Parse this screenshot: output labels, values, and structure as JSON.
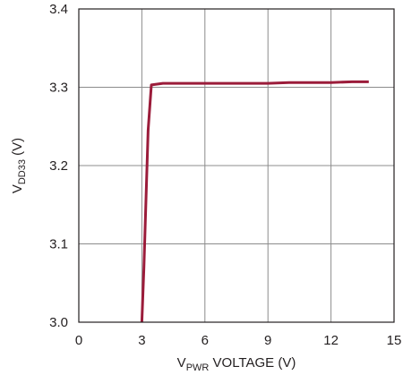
{
  "chart_data": {
    "type": "line",
    "title": "",
    "xlabel_main": "V",
    "xlabel_sub": "PWR",
    "xlabel_rest": " VOLTAGE (V)",
    "ylabel_main": "V",
    "ylabel_sub": "DD33",
    "ylabel_rest": " (V)",
    "xlim": [
      0,
      15
    ],
    "ylim": [
      3.0,
      3.4
    ],
    "x_ticks": [
      0,
      3,
      6,
      9,
      12,
      15
    ],
    "x_tick_labels": [
      "0",
      "3",
      "6",
      "9",
      "12",
      "15"
    ],
    "y_ticks": [
      3.0,
      3.1,
      3.2,
      3.3,
      3.4
    ],
    "y_tick_labels": [
      "3.0",
      "3.1",
      "3.2",
      "3.3",
      "3.4"
    ],
    "grid": true,
    "series": [
      {
        "color": "#9b1c3a",
        "x": [
          3.0,
          3.1,
          3.2,
          3.3,
          3.45,
          4.0,
          5.0,
          6.0,
          7.0,
          8.0,
          9.0,
          10.0,
          11.0,
          12.0,
          13.0,
          13.8
        ],
        "y": [
          3.0,
          3.07,
          3.16,
          3.245,
          3.303,
          3.305,
          3.305,
          3.305,
          3.305,
          3.305,
          3.305,
          3.306,
          3.306,
          3.306,
          3.307,
          3.307
        ]
      }
    ]
  }
}
